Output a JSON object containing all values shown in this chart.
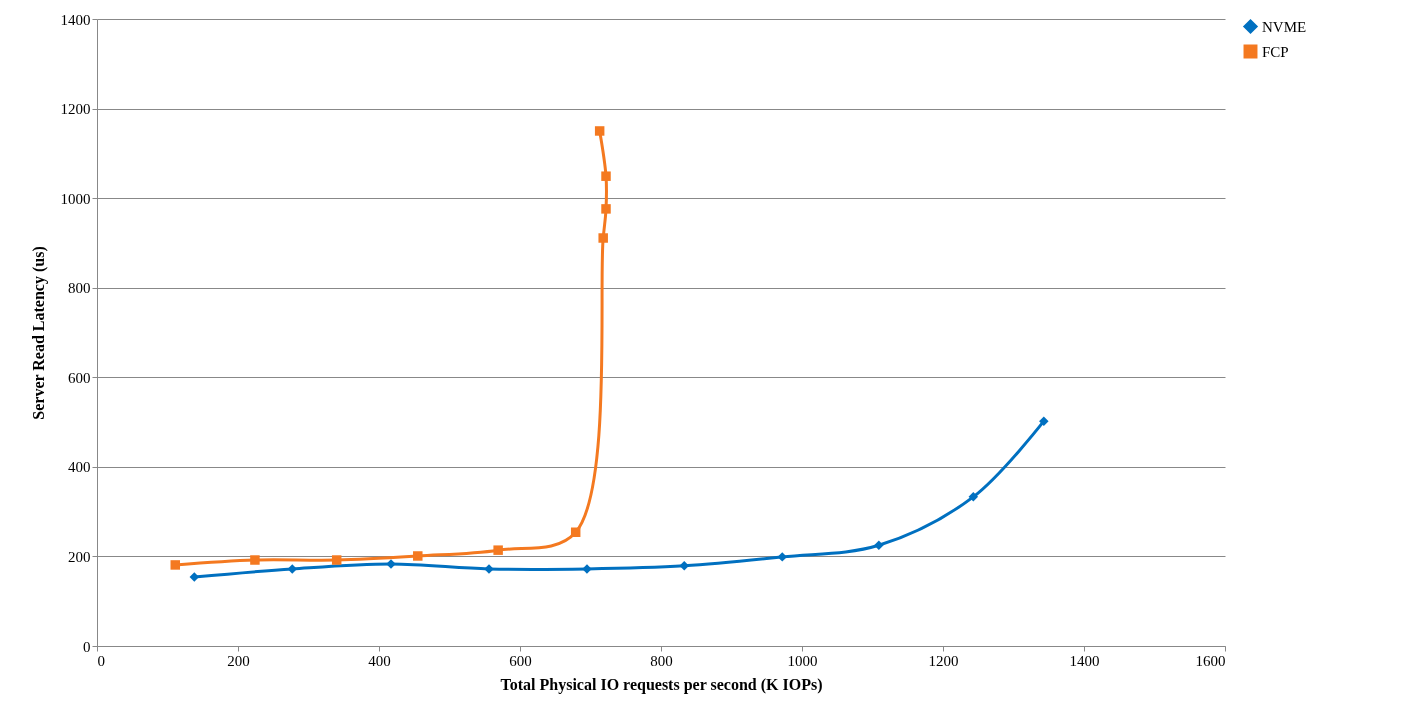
{
  "chart_data": {
    "type": "line",
    "xlabel": "Total Physical IO requests per second (K IOPs)",
    "ylabel": "Server Read Latency (us)",
    "xlim": [
      0,
      1600
    ],
    "xticks": [
      0,
      200,
      400,
      600,
      800,
      1000,
      1200,
      1400,
      1600
    ],
    "ylim": [
      0,
      1400
    ],
    "yticks": [
      0,
      200,
      400,
      600,
      800,
      1000,
      1200,
      1400
    ],
    "grid": "y",
    "legend": "right",
    "line_style": "solid",
    "series": [
      {
        "name": "NVME",
        "color": "#0070c0",
        "marker": "diamond",
        "x": [
          138,
          277,
          417,
          556,
          695,
          833,
          972,
          1109,
          1243,
          1343
        ],
        "values": [
          154,
          172,
          183,
          172,
          172,
          179,
          199,
          225,
          333,
          502
        ]
      },
      {
        "name": "FCP",
        "color": "#f47920",
        "marker": "square",
        "x": [
          111,
          224,
          340,
          455,
          569,
          679,
          718,
          722,
          722,
          713
        ],
        "values": [
          181,
          192,
          192,
          201,
          214,
          254,
          911,
          976,
          1049,
          1150
        ]
      }
    ]
  }
}
